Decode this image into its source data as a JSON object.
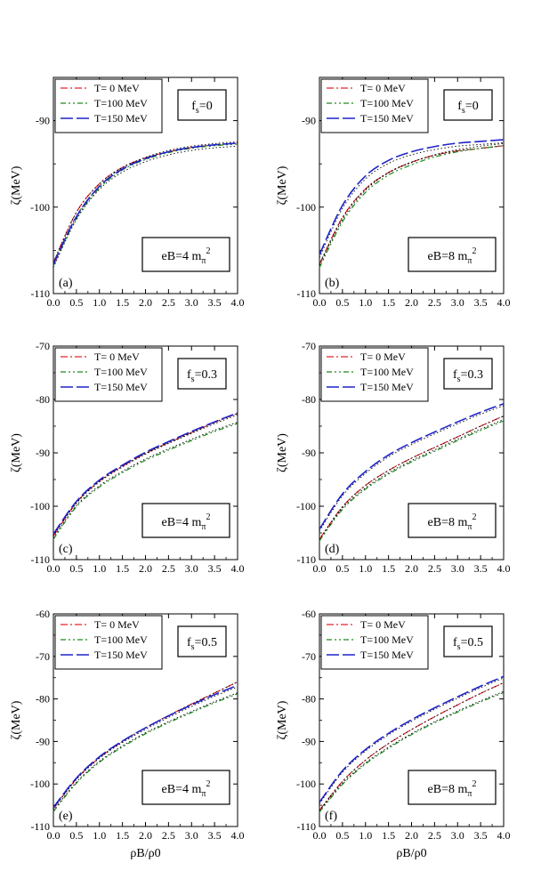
{
  "figure": {
    "xlabel": "ρB/ρ0",
    "ylabel": "ζ(MeV)",
    "legend": [
      "T= 0 MeV",
      "T=100 MeV",
      "T=150 MeV"
    ],
    "colors": {
      "T0": "#e8232a",
      "T100": "#1c8a1c",
      "T150": "#1f23c9"
    }
  },
  "chart_data": [
    {
      "type": "line",
      "panel": "(a)",
      "fs_label": "fs=0",
      "eb_label": "eB=4 mπ2",
      "xlim": [
        0,
        4
      ],
      "ylim": [
        -110,
        -85
      ],
      "xticks": [
        "0.0",
        "0.5",
        "1.0",
        "1.5",
        "2.0",
        "2.5",
        "3.0",
        "3.5",
        "4.0"
      ],
      "yticks": [
        "-90",
        "-100",
        "-110"
      ],
      "x": [
        0,
        0.5,
        1.0,
        1.5,
        2.0,
        2.5,
        3.0,
        3.5,
        4.0
      ],
      "series": [
        {
          "name": "T= 0 MeV",
          "values": [
            -106.4,
            -100.6,
            -97.3,
            -95.4,
            -94.3,
            -93.6,
            -93.1,
            -92.8,
            -92.6
          ]
        },
        {
          "name": "T=100 MeV",
          "values": [
            -106.8,
            -101.3,
            -97.8,
            -95.7,
            -94.5,
            -93.7,
            -93.2,
            -92.9,
            -92.7
          ]
        },
        {
          "name": "T=150 MeV",
          "values": [
            -106.6,
            -101.1,
            -97.6,
            -95.6,
            -94.4,
            -93.6,
            -93.1,
            -92.8,
            -92.6
          ]
        }
      ],
      "grid": false,
      "legend_position": "top-left"
    },
    {
      "type": "line",
      "panel": "(b)",
      "fs_label": "fs=0",
      "eb_label": "eB=8 mπ2",
      "xlim": [
        0,
        4
      ],
      "ylim": [
        -110,
        -85
      ],
      "xticks": [
        "0.0",
        "0.5",
        "1.0",
        "1.5",
        "2.0",
        "2.5",
        "3.0",
        "3.5",
        "4.0"
      ],
      "yticks": [
        "-90",
        "-100",
        "-110"
      ],
      "x": [
        0,
        0.5,
        1.0,
        1.5,
        2.0,
        2.5,
        3.0,
        3.5,
        4.0
      ],
      "series": [
        {
          "name": "T= 0 MeV",
          "values": [
            -106.6,
            -101.2,
            -97.9,
            -96.0,
            -94.8,
            -94.0,
            -93.5,
            -93.2,
            -92.9
          ]
        },
        {
          "name": "T=100 MeV",
          "values": [
            -107.0,
            -101.7,
            -98.3,
            -96.3,
            -95.1,
            -94.2,
            -93.6,
            -93.2,
            -92.9
          ]
        },
        {
          "name": "T=150 MeV",
          "values": [
            -105.5,
            -99.8,
            -96.4,
            -94.6,
            -93.6,
            -93.0,
            -92.6,
            -92.4,
            -92.2
          ]
        }
      ],
      "grid": false,
      "legend_position": "top-left"
    },
    {
      "type": "line",
      "panel": "(c)",
      "fs_label": "fs=0.3",
      "eb_label": "eB=4 mπ2",
      "xlim": [
        0,
        4
      ],
      "ylim": [
        -110,
        -70
      ],
      "xticks": [
        "0.0",
        "0.5",
        "1.0",
        "1.5",
        "2.0",
        "2.5",
        "3.0",
        "3.5",
        "4.0"
      ],
      "yticks": [
        "-70",
        "-80",
        "-90",
        "-100",
        "-110"
      ],
      "x": [
        0,
        0.5,
        1.0,
        1.5,
        2.0,
        2.5,
        3.0,
        3.5,
        4.0
      ],
      "series": [
        {
          "name": "T= 0 MeV",
          "values": [
            -105.6,
            -99.3,
            -95.3,
            -92.5,
            -90.1,
            -88.1,
            -86.2,
            -84.3,
            -82.6
          ]
        },
        {
          "name": "T=100 MeV",
          "values": [
            -106.2,
            -100.1,
            -96.4,
            -93.7,
            -91.4,
            -89.5,
            -87.7,
            -86.0,
            -84.5
          ]
        },
        {
          "name": "T=150 MeV",
          "values": [
            -105.2,
            -99.1,
            -95.1,
            -92.3,
            -89.9,
            -87.9,
            -86.0,
            -84.2,
            -82.5
          ]
        }
      ],
      "grid": false,
      "legend_position": "top-left"
    },
    {
      "type": "line",
      "panel": "(d)",
      "fs_label": "fs=0.3",
      "eb_label": "eB=8 mπ2",
      "xlim": [
        0,
        4
      ],
      "ylim": [
        -110,
        -70
      ],
      "xticks": [
        "0.0",
        "0.5",
        "1.0",
        "1.5",
        "2.0",
        "2.5",
        "3.0",
        "3.5",
        "4.0"
      ],
      "yticks": [
        "-70",
        "-80",
        "-90",
        "-100",
        "-110"
      ],
      "x": [
        0,
        0.5,
        1.0,
        1.5,
        2.0,
        2.5,
        3.0,
        3.5,
        4.0
      ],
      "series": [
        {
          "name": "T= 0 MeV",
          "values": [
            -106.2,
            -100.1,
            -96.1,
            -93.3,
            -91.0,
            -89.0,
            -87.0,
            -85.0,
            -83.1
          ]
        },
        {
          "name": "T=100 MeV",
          "values": [
            -106.5,
            -100.6,
            -96.8,
            -94.0,
            -91.7,
            -89.7,
            -87.7,
            -85.8,
            -84.0
          ]
        },
        {
          "name": "T=150 MeV",
          "values": [
            -104.3,
            -97.7,
            -93.5,
            -90.4,
            -88.1,
            -86.1,
            -84.2,
            -82.4,
            -80.8
          ]
        }
      ],
      "grid": false,
      "legend_position": "top-left"
    },
    {
      "type": "line",
      "panel": "(e)",
      "fs_label": "fs=0.5",
      "eb_label": "eB=4 mπ2",
      "xlim": [
        0,
        4
      ],
      "ylim": [
        -110,
        -60
      ],
      "xticks": [
        "0.0",
        "0.5",
        "1.0",
        "1.5",
        "2.0",
        "2.5",
        "3.0",
        "3.5",
        "4.0"
      ],
      "yticks": [
        "-60",
        "-70",
        "-80",
        "-90",
        "-100",
        "-110"
      ],
      "x": [
        0,
        0.5,
        1.0,
        1.5,
        2.0,
        2.5,
        3.0,
        3.5,
        4.0
      ],
      "series": [
        {
          "name": "T= 0 MeV",
          "values": [
            -105.8,
            -98.8,
            -93.8,
            -90.0,
            -86.8,
            -83.9,
            -81.2,
            -78.6,
            -76.0
          ]
        },
        {
          "name": "T=100 MeV",
          "values": [
            -106.5,
            -99.8,
            -94.9,
            -91.3,
            -88.2,
            -85.6,
            -83.2,
            -80.9,
            -78.8
          ]
        },
        {
          "name": "T=150 MeV",
          "values": [
            -105.5,
            -98.6,
            -93.6,
            -89.9,
            -86.8,
            -84.0,
            -81.4,
            -79.0,
            -76.8
          ]
        }
      ],
      "grid": false,
      "legend_position": "top-left"
    },
    {
      "type": "line",
      "panel": "(f)",
      "fs_label": "fs=0.5",
      "eb_label": "eB=8 mπ2",
      "xlim": [
        0,
        4
      ],
      "ylim": [
        -110,
        -60
      ],
      "xticks": [
        "0.0",
        "0.5",
        "1.0",
        "1.5",
        "2.0",
        "2.5",
        "3.0",
        "3.5",
        "4.0"
      ],
      "yticks": [
        "-60",
        "-70",
        "-80",
        "-90",
        "-100",
        "-110"
      ],
      "x": [
        0,
        0.5,
        1.0,
        1.5,
        2.0,
        2.5,
        3.0,
        3.5,
        4.0
      ],
      "series": [
        {
          "name": "T= 0 MeV",
          "values": [
            -106.2,
            -99.4,
            -94.4,
            -90.5,
            -87.2,
            -84.2,
            -81.4,
            -78.7,
            -76.2
          ]
        },
        {
          "name": "T=100 MeV",
          "values": [
            -106.6,
            -100.1,
            -95.3,
            -91.6,
            -88.4,
            -85.6,
            -83.1,
            -80.7,
            -78.5
          ]
        },
        {
          "name": "T=150 MeV",
          "values": [
            -104.3,
            -96.9,
            -91.9,
            -88.1,
            -84.9,
            -82.1,
            -79.5,
            -77.0,
            -74.7
          ]
        }
      ],
      "grid": false,
      "legend_position": "top-left"
    }
  ]
}
